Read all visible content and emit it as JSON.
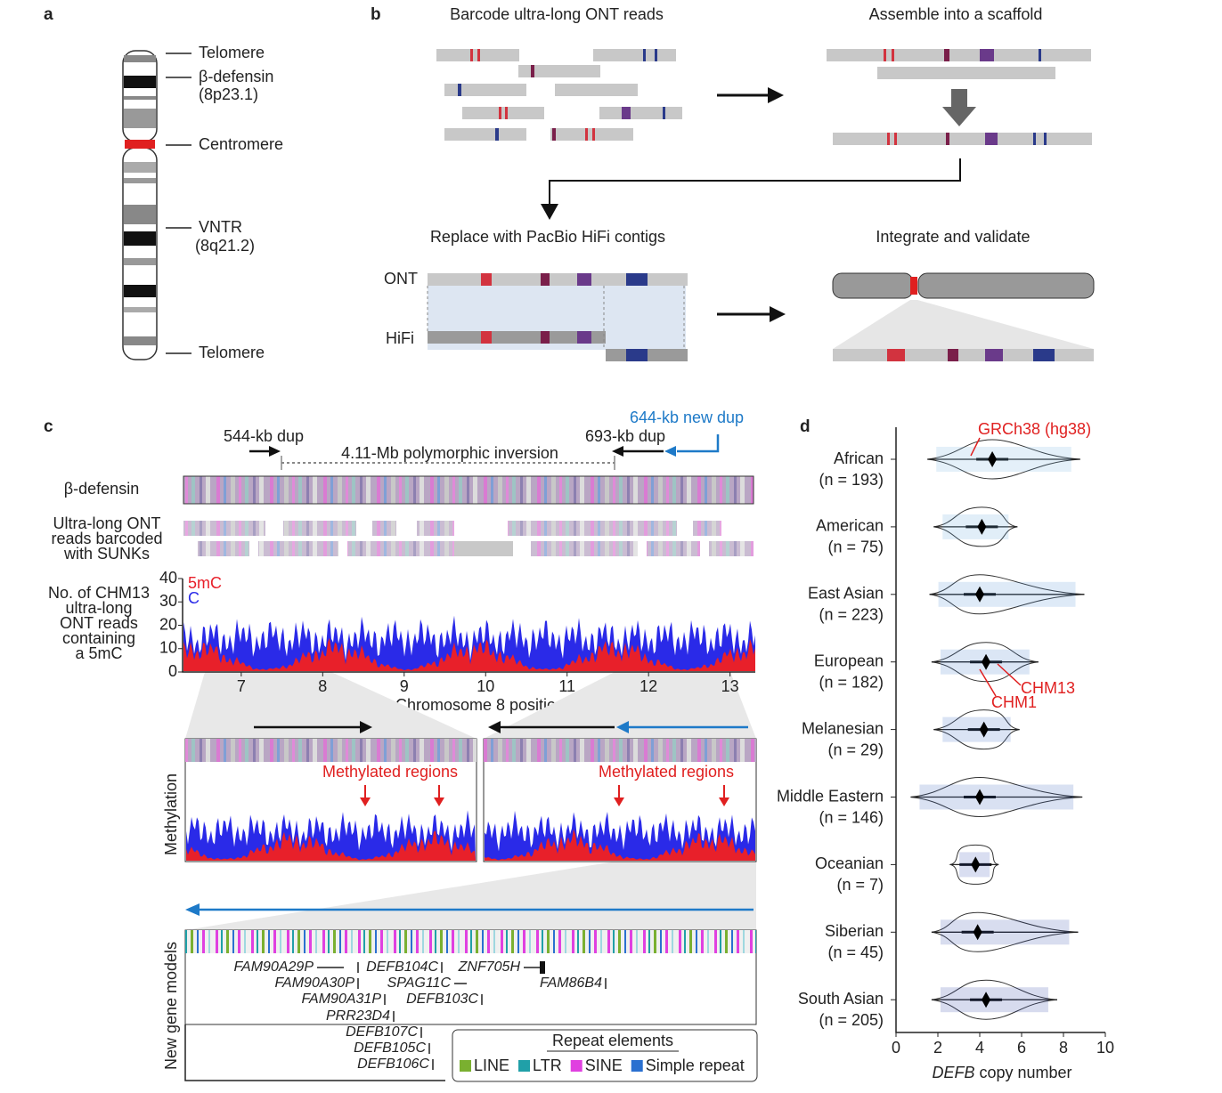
{
  "panel_a": {
    "letter": "a",
    "labels": [
      "Telomere",
      "β-defensin",
      "(8p23.1)",
      "Centromere",
      "VNTR",
      "(8q21.2)",
      "Telomere"
    ]
  },
  "panel_b": {
    "letter": "b",
    "steps": [
      "Barcode ultra-long ONT reads",
      "Assemble into a scaffold",
      "Replace with PacBio HiFi contigs",
      "Integrate and validate"
    ],
    "track_labels": [
      "ONT",
      "HiFi"
    ]
  },
  "panel_c": {
    "letter": "c",
    "annotations": [
      "544-kb dup",
      "4.11-Mb polymorphic inversion",
      "693-kb dup",
      "644-kb new dup"
    ],
    "track_label": "β-defensin",
    "reads_label": [
      "Ultra-long ONT",
      "reads barcoded",
      "with SUNKs"
    ],
    "y_label": [
      "No. of CHM13",
      "ultra-long",
      "ONT reads",
      "containing",
      "a 5mC"
    ],
    "legend": [
      {
        "name": "5mC",
        "color": "#e8202a"
      },
      {
        "name": "C",
        "color": "#2a2ae8"
      }
    ],
    "ylim": [
      0,
      40
    ],
    "yticks": [
      0,
      10,
      20,
      30,
      40
    ],
    "xlim": [
      6.28,
      13.31
    ],
    "xticks": [
      7,
      8,
      9,
      10,
      11,
      12,
      13
    ],
    "x_label": "Chromosome 8 position (Mb)",
    "zoom_label": "Methylation",
    "zoom_annotations": [
      "Methylated regions",
      "Methylated regions"
    ],
    "gene_track_label": "New gene models",
    "genes": [
      "FAM90A29P",
      "DEFB104C",
      "ZNF705H",
      "FAM90A30P",
      "SPAG11C",
      "FAM86B4",
      "FAM90A31P",
      "DEFB103C",
      "PRR23D4",
      "DEFB107C",
      "DEFB105C",
      "DEFB106C"
    ],
    "repeat_legend": {
      "title": "Repeat elements",
      "items": [
        {
          "name": "LINE",
          "color": "#7ab030"
        },
        {
          "name": "LTR",
          "color": "#20a0a8"
        },
        {
          "name": "SINE",
          "color": "#e040e0"
        },
        {
          "name": "Simple repeat",
          "color": "#2a70d0"
        }
      ]
    }
  },
  "panel_d": {
    "letter": "d",
    "type": "violin",
    "categories": [
      "African",
      "American",
      "East Asian",
      "European",
      "Melanesian",
      "Middle Eastern",
      "Oceanian",
      "Siberian",
      "South Asian"
    ],
    "n_labels": [
      "(n = 193)",
      "(n = 75)",
      "(n = 223)",
      "(n = 182)",
      "(n = 29)",
      "(n = 146)",
      "(n = 7)",
      "(n = 45)",
      "(n = 205)"
    ],
    "colors": [
      "#6aaee0",
      "#5a9ed8",
      "#4a8ad0",
      "#3a76c8",
      "#3466c0",
      "#2e56b8",
      "#2a4ab0",
      "#2640a8",
      "#2236a0"
    ],
    "medians": [
      4.6,
      4.1,
      4.0,
      4.3,
      4.2,
      4.0,
      3.8,
      3.9,
      4.3
    ],
    "ranges": [
      [
        1.5,
        8.8
      ],
      [
        1.8,
        5.8
      ],
      [
        1.6,
        9.0
      ],
      [
        1.7,
        6.8
      ],
      [
        1.8,
        5.9
      ],
      [
        0.7,
        8.9
      ],
      [
        2.6,
        4.9
      ],
      [
        1.7,
        8.7
      ],
      [
        1.7,
        7.7
      ]
    ],
    "xlim": [
      0,
      10
    ],
    "xticks": [
      0,
      2,
      4,
      6,
      8,
      10
    ],
    "x_label": [
      "DEFB",
      "copy number"
    ],
    "annotations": [
      "GRCh38 (hg38)",
      "CHM13",
      "CHM1"
    ]
  }
}
